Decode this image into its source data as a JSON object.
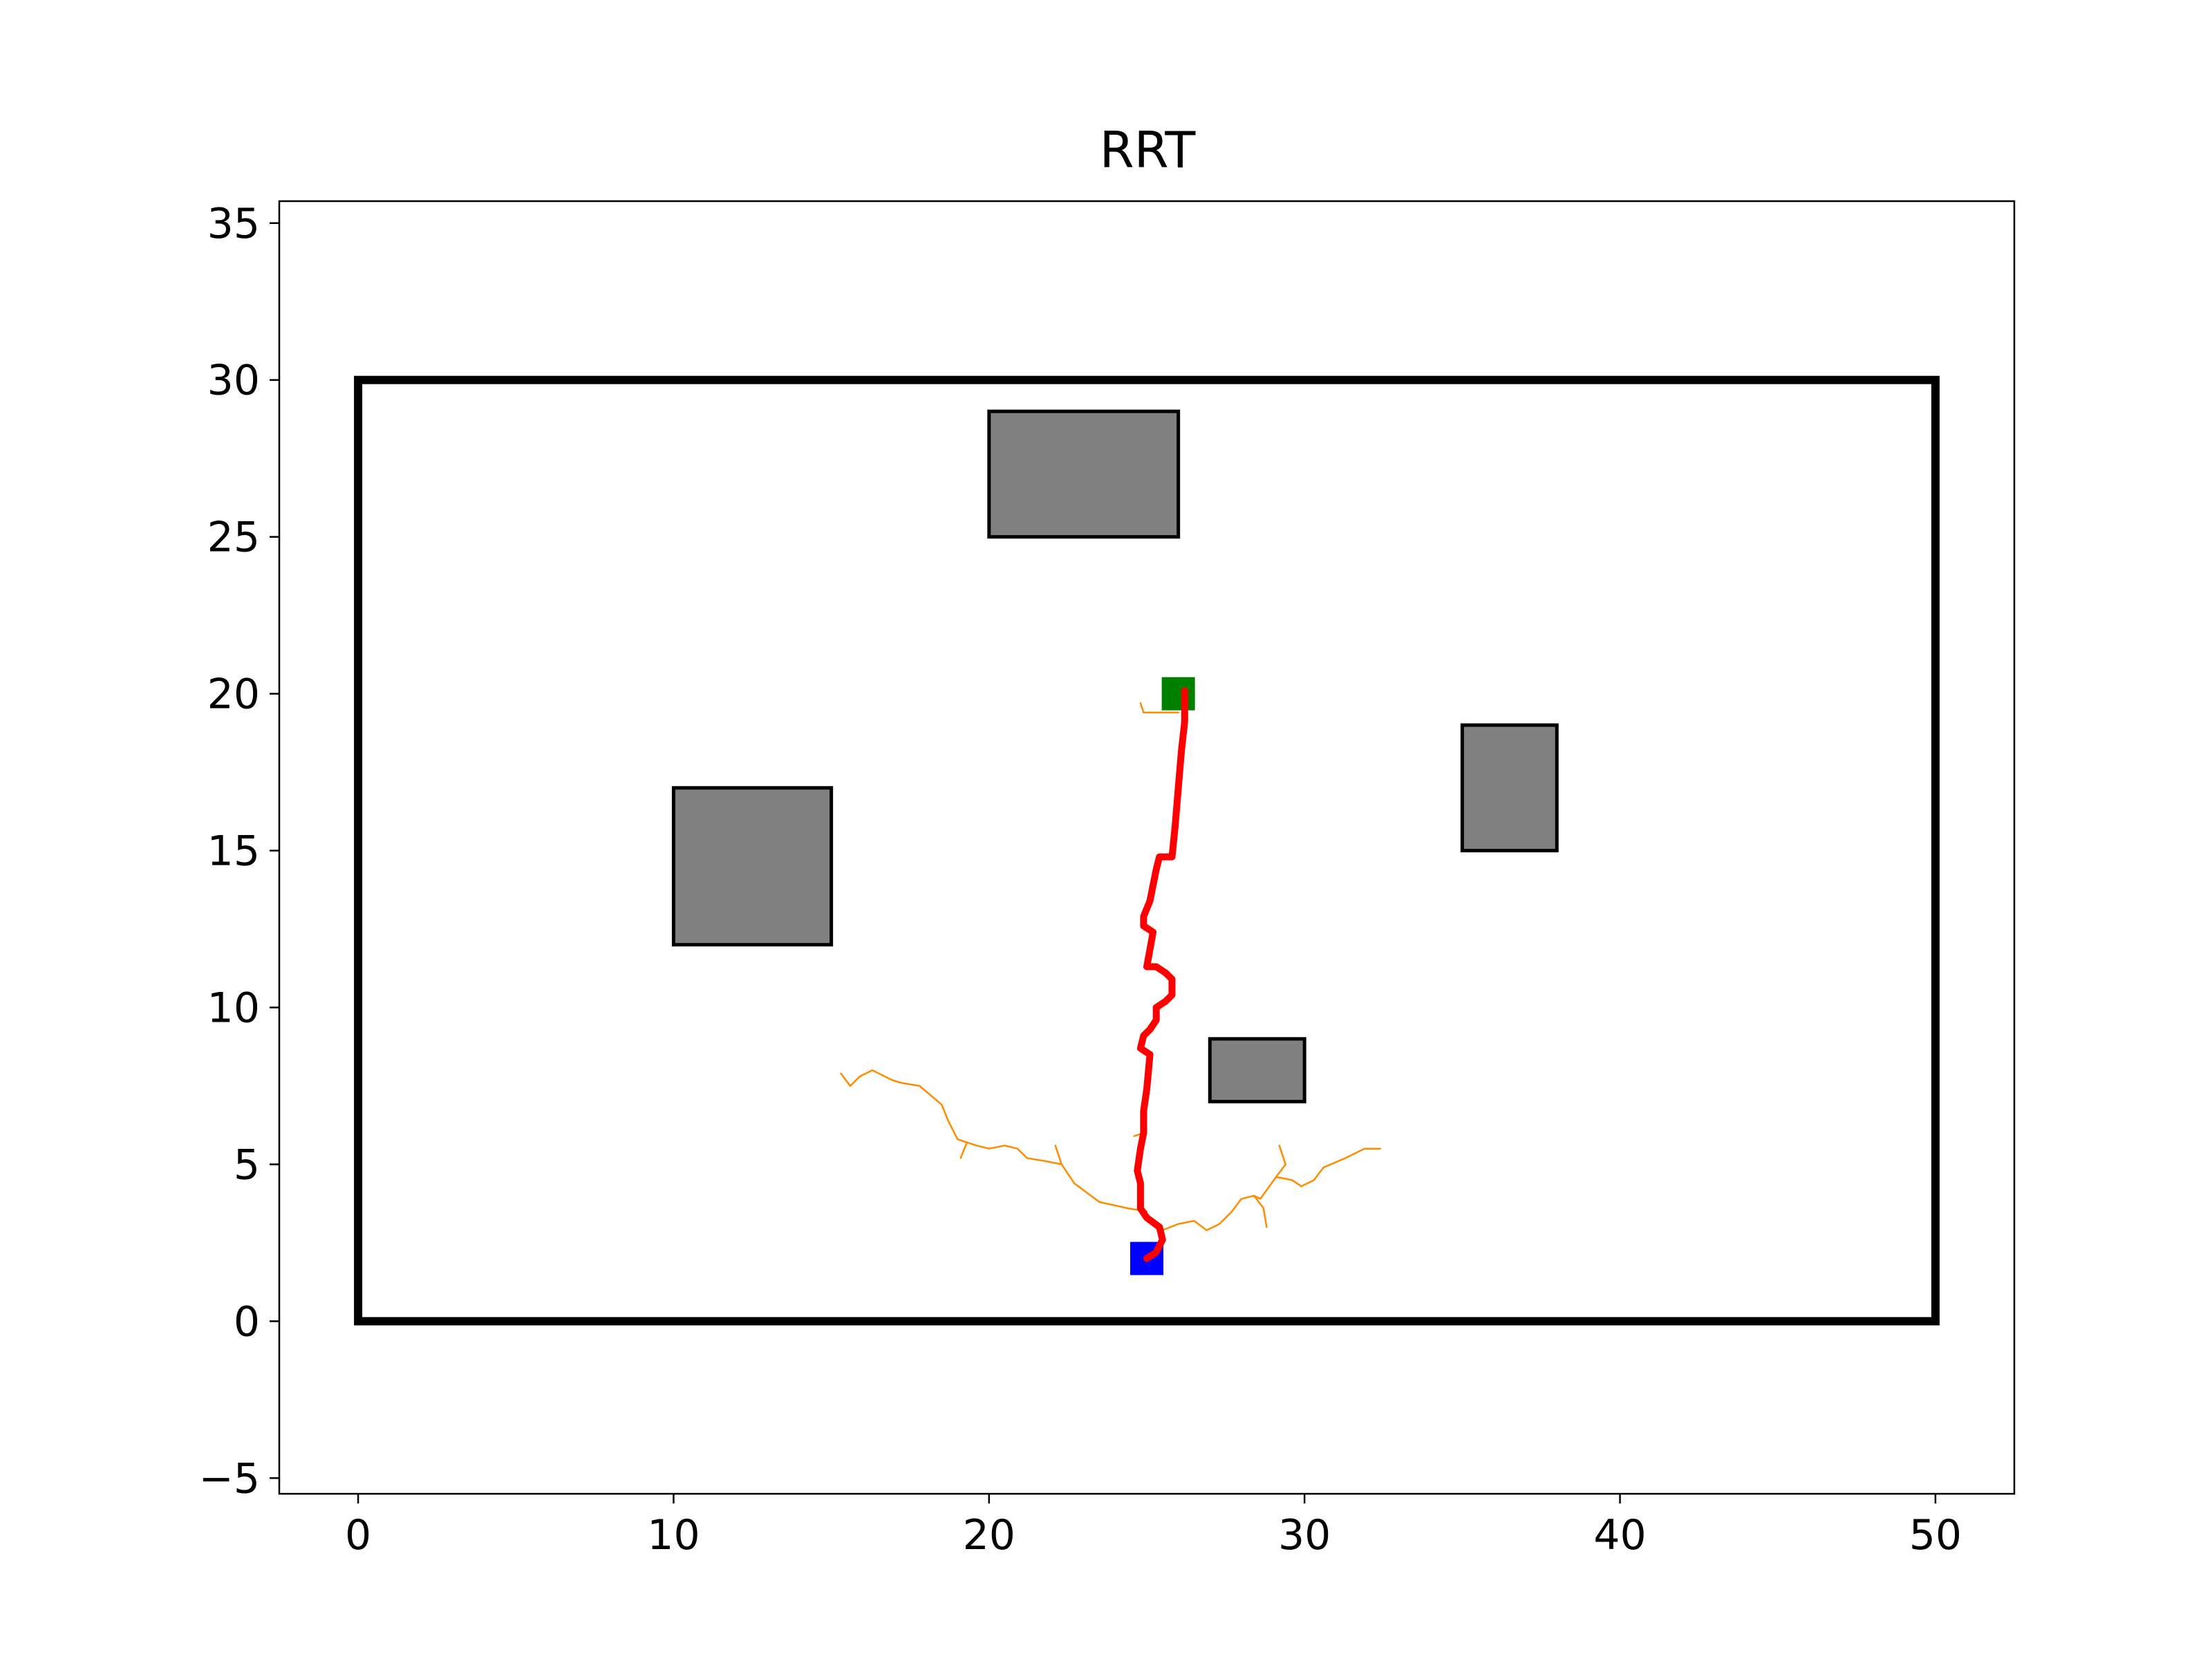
{
  "chart_data": {
    "type": "line",
    "title": "RRT",
    "xlabel": "",
    "ylabel": "",
    "xlim": [
      -2.5,
      52.5
    ],
    "ylim": [
      -5.5,
      35.7
    ],
    "xticks": [
      0,
      10,
      20,
      30,
      40,
      50
    ],
    "yticks": [
      -5,
      0,
      5,
      10,
      15,
      20,
      25,
      30,
      35
    ],
    "xtick_labels": [
      "0",
      "10",
      "20",
      "30",
      "40",
      "50"
    ],
    "ytick_labels": [
      "−5",
      "0",
      "5",
      "10",
      "15",
      "20",
      "25",
      "30",
      "35"
    ],
    "grid": false,
    "boundary": {
      "x": [
        0,
        50
      ],
      "y": [
        0,
        30
      ],
      "color": "#000000"
    },
    "obstacles": [
      {
        "x": 20,
        "y": 25,
        "width": 6,
        "height": 4,
        "color": "#808080"
      },
      {
        "x": 10,
        "y": 12,
        "width": 5,
        "height": 5,
        "color": "#808080"
      },
      {
        "x": 35,
        "y": 15,
        "width": 3,
        "height": 4,
        "color": "#808080"
      },
      {
        "x": 27,
        "y": 7,
        "width": 3,
        "height": 2,
        "color": "#808080"
      }
    ],
    "start": {
      "x": 25,
      "y": 2,
      "color": "#0000ff"
    },
    "goal": {
      "x": 26,
      "y": 20,
      "color": "#008000"
    },
    "tree_color": "#ff8c00",
    "tree_edges": [
      [
        [
          25.0,
          3.5
        ],
        [
          24.4,
          3.6
        ],
        [
          23.5,
          3.8
        ],
        [
          22.7,
          4.4
        ],
        [
          22.3,
          5.0
        ],
        [
          22.1,
          5.6
        ]
      ],
      [
        [
          22.3,
          5.0
        ],
        [
          21.8,
          5.1
        ],
        [
          21.2,
          5.2
        ],
        [
          20.9,
          5.5
        ],
        [
          20.5,
          5.6
        ],
        [
          20.0,
          5.5
        ],
        [
          19.6,
          5.6
        ]
      ],
      [
        [
          19.6,
          5.6
        ],
        [
          19.3,
          5.7
        ],
        [
          19.0,
          5.8
        ],
        [
          18.7,
          6.4
        ],
        [
          18.5,
          6.9
        ],
        [
          17.8,
          7.5
        ],
        [
          17.2,
          7.6
        ],
        [
          16.9,
          7.7
        ],
        [
          16.3,
          8.0
        ],
        [
          15.9,
          7.8
        ],
        [
          15.6,
          7.5
        ],
        [
          15.3,
          7.9
        ]
      ],
      [
        [
          19.3,
          5.7
        ],
        [
          19.1,
          5.2
        ]
      ],
      [
        [
          24.6,
          5.9
        ],
        [
          24.9,
          6.0
        ]
      ],
      [
        [
          25.5,
          2.9
        ],
        [
          26.0,
          3.1
        ],
        [
          26.5,
          3.2
        ],
        [
          26.9,
          2.9
        ],
        [
          27.3,
          3.1
        ],
        [
          27.7,
          3.5
        ],
        [
          28.0,
          3.9
        ],
        [
          28.4,
          4.0
        ],
        [
          28.6,
          3.9
        ],
        [
          29.1,
          4.6
        ],
        [
          29.6,
          4.5
        ],
        [
          29.9,
          4.3
        ],
        [
          30.3,
          4.5
        ],
        [
          30.6,
          4.9
        ],
        [
          31.3,
          5.2
        ],
        [
          31.9,
          5.5
        ],
        [
          32.4,
          5.5
        ]
      ],
      [
        [
          28.4,
          4.0
        ],
        [
          28.7,
          3.6
        ],
        [
          28.8,
          3.0
        ]
      ],
      [
        [
          29.1,
          4.6
        ],
        [
          29.4,
          5.0
        ],
        [
          29.2,
          5.6
        ]
      ],
      [
        [
          26.0,
          19.4
        ],
        [
          25.5,
          19.4
        ],
        [
          24.9,
          19.4
        ],
        [
          24.8,
          19.7
        ]
      ]
    ],
    "path_color": "#ff0000",
    "path": [
      [
        25.0,
        2.0
      ],
      [
        25.3,
        2.2
      ],
      [
        25.5,
        2.6
      ],
      [
        25.4,
        3.0
      ],
      [
        25.0,
        3.3
      ],
      [
        24.8,
        3.6
      ],
      [
        24.8,
        4.4
      ],
      [
        24.7,
        4.8
      ],
      [
        24.8,
        5.5
      ],
      [
        24.9,
        6.0
      ],
      [
        24.9,
        6.7
      ],
      [
        25.0,
        7.4
      ],
      [
        25.1,
        8.5
      ],
      [
        24.8,
        8.7
      ],
      [
        24.9,
        9.1
      ],
      [
        25.1,
        9.3
      ],
      [
        25.3,
        9.6
      ],
      [
        25.3,
        10.0
      ],
      [
        25.6,
        10.2
      ],
      [
        25.8,
        10.4
      ],
      [
        25.8,
        10.9
      ],
      [
        25.6,
        11.1
      ],
      [
        25.3,
        11.3
      ],
      [
        25.0,
        11.3
      ],
      [
        25.2,
        12.4
      ],
      [
        24.9,
        12.6
      ],
      [
        24.9,
        12.9
      ],
      [
        25.1,
        13.4
      ],
      [
        25.2,
        13.9
      ],
      [
        25.3,
        14.4
      ],
      [
        25.4,
        14.8
      ],
      [
        25.8,
        14.8
      ],
      [
        25.9,
        15.8
      ],
      [
        26.0,
        17.0
      ],
      [
        26.1,
        18.2
      ],
      [
        26.2,
        19.1
      ],
      [
        26.2,
        20.1
      ]
    ]
  }
}
